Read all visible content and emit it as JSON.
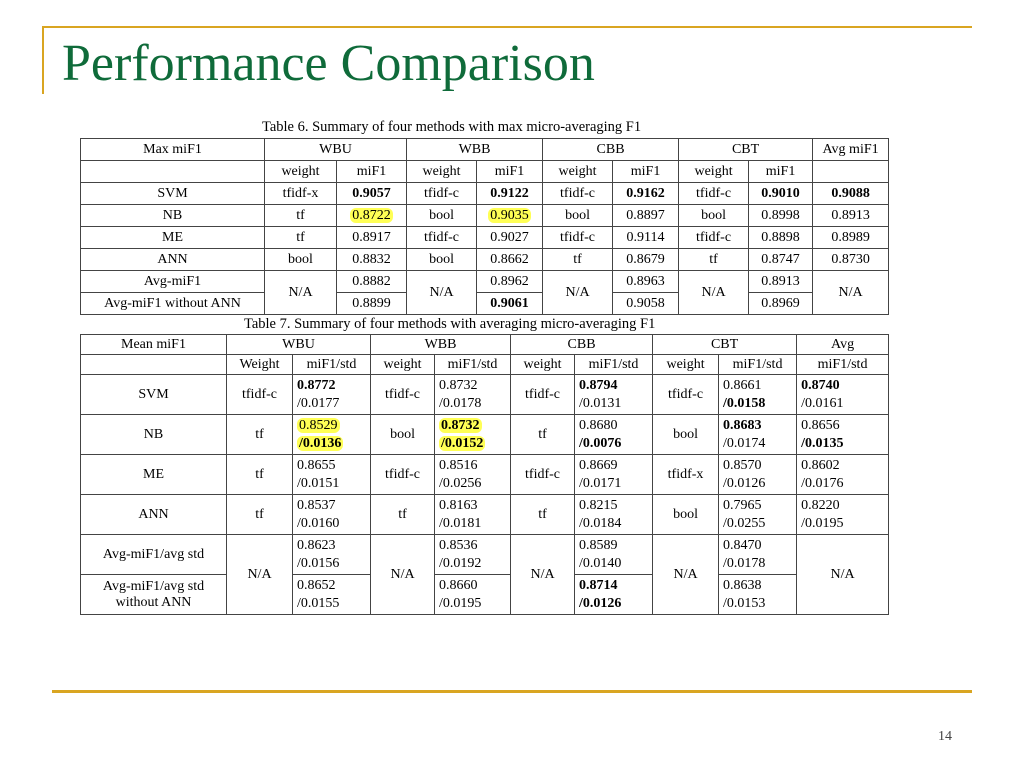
{
  "slide": {
    "title": "Performance Comparison",
    "page_number": "14"
  },
  "table6": {
    "caption": "Table 6. Summary of four methods with max micro-averaging F1",
    "corner": "Max miF1",
    "groups": [
      "WBU",
      "WBB",
      "CBB",
      "CBT"
    ],
    "avg_header": "Avg miF1",
    "sub_weight": "weight",
    "sub_mif1": "miF1",
    "rows": [
      {
        "label": "SVM",
        "cells": [
          "tfidf-x",
          "0.9057",
          "tfidf-c",
          "0.9122",
          "tfidf-c",
          "0.9162",
          "tfidf-c",
          "0.9010"
        ],
        "avg": "0.9088"
      },
      {
        "label": "NB",
        "cells": [
          "tf",
          "0.8722",
          "bool",
          "0.9035",
          "bool",
          "0.8897",
          "bool",
          "0.8998"
        ],
        "avg": "0.8913"
      },
      {
        "label": "ME",
        "cells": [
          "tf",
          "0.8917",
          "tfidf-c",
          "0.9027",
          "tfidf-c",
          "0.9114",
          "tfidf-c",
          "0.8898"
        ],
        "avg": "0.8989"
      },
      {
        "label": "ANN",
        "cells": [
          "bool",
          "0.8832",
          "bool",
          "0.8662",
          "tf",
          "0.8679",
          "tf",
          "0.8747"
        ],
        "avg": "0.8730"
      }
    ],
    "avg_rows": {
      "label1": "Avg-miF1",
      "label2": "Avg-miF1 without ANN",
      "na": "N/A",
      "v1": [
        "0.8882",
        "0.8962",
        "0.8963",
        "0.8913"
      ],
      "v2": [
        "0.8899",
        "0.9061",
        "0.9058",
        "0.8969"
      ]
    }
  },
  "table7": {
    "caption": "Table 7. Summary of four methods with averaging micro-averaging F1",
    "corner": "Mean miF1",
    "groups": [
      "WBU",
      "WBB",
      "CBB",
      "CBT"
    ],
    "avg_header_1": "Avg",
    "avg_header_2": "miF1/std",
    "sub_weight_first": "Weight",
    "sub_weight": "weight",
    "sub_mif1std": "miF1/std",
    "rows": [
      {
        "label": "SVM",
        "cells": [
          [
            "tfidf-c"
          ],
          [
            "0.8772",
            "/0.0177"
          ],
          [
            "tfidf-c"
          ],
          [
            "0.8732",
            "/0.0178"
          ],
          [
            "tfidf-c"
          ],
          [
            "0.8794",
            "/0.0131"
          ],
          [
            "tfidf-c"
          ],
          [
            "0.8661",
            "/0.0158"
          ]
        ],
        "avg": [
          "0.8740",
          "/0.0161"
        ]
      },
      {
        "label": "NB",
        "cells": [
          [
            "tf"
          ],
          [
            "0.8529",
            "/0.0136"
          ],
          [
            "bool"
          ],
          [
            "0.8732",
            "/0.0152"
          ],
          [
            "tf"
          ],
          [
            "0.8680",
            "/0.0076"
          ],
          [
            "bool"
          ],
          [
            "0.8683",
            "/0.0174"
          ]
        ],
        "avg": [
          "0.8656",
          "/0.0135"
        ]
      },
      {
        "label": "ME",
        "cells": [
          [
            "tf"
          ],
          [
            "0.8655",
            "/0.0151"
          ],
          [
            "tfidf-c"
          ],
          [
            "0.8516",
            "/0.0256"
          ],
          [
            "tfidf-c"
          ],
          [
            "0.8669",
            "/0.0171"
          ],
          [
            "tfidf-x"
          ],
          [
            "0.8570",
            "/0.0126"
          ]
        ],
        "avg": [
          "0.8602",
          "/0.0176"
        ]
      },
      {
        "label": "ANN",
        "cells": [
          [
            "tf"
          ],
          [
            "0.8537",
            "/0.0160"
          ],
          [
            "tf"
          ],
          [
            "0.8163",
            "/0.0181"
          ],
          [
            "tf"
          ],
          [
            "0.8215",
            "/0.0184"
          ],
          [
            "bool"
          ],
          [
            "0.7965",
            "/0.0255"
          ]
        ],
        "avg": [
          "0.8220",
          "/0.0195"
        ]
      }
    ],
    "avg_rows": {
      "label1": "Avg-miF1/avg std",
      "label2a": "Avg-miF1/avg std",
      "label2b": "without ANN",
      "na": "N/A",
      "v1": [
        [
          "0.8623",
          "/0.0156"
        ],
        [
          "0.8536",
          "/0.0192"
        ],
        [
          "0.8589",
          "/0.0140"
        ],
        [
          "0.8470",
          "/0.0178"
        ]
      ],
      "v2": [
        [
          "0.8652",
          "/0.0155"
        ],
        [
          "0.8660",
          "/0.0195"
        ],
        [
          "0.8714",
          "/0.0126"
        ],
        [
          "0.8638",
          "/0.0153"
        ]
      ]
    }
  },
  "colors": {
    "title": "#0f6b3a",
    "accent_rule": "#d9a521",
    "highlight": "#ffff55"
  }
}
